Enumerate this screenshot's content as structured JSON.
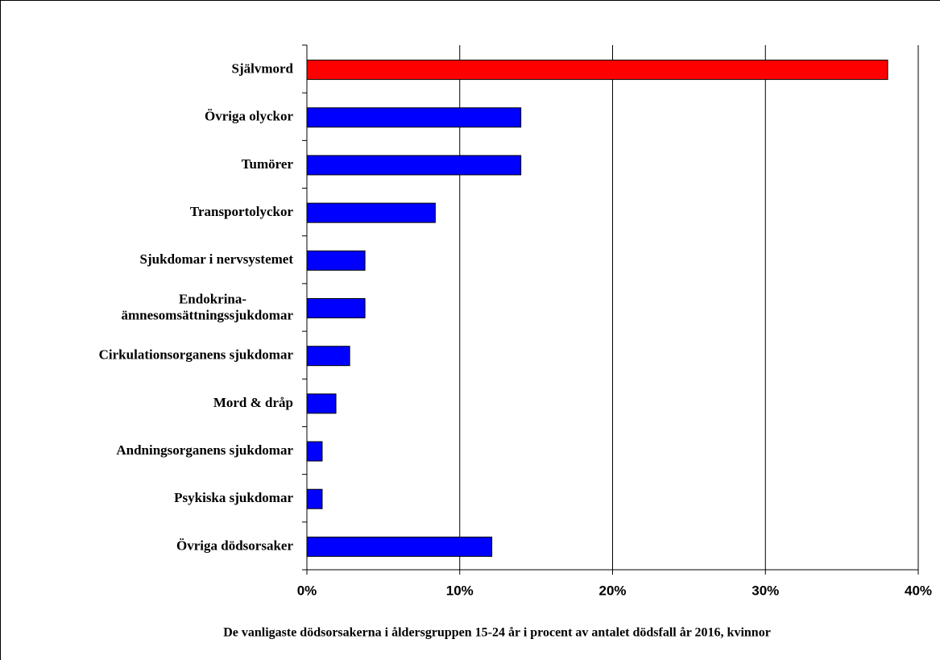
{
  "chart_data": {
    "type": "barh",
    "title": "De vanligaste dödsorsakerna i åldersgruppen 15-24 år i procent av antalet dödsfall år 2016, kvinnor",
    "categories": [
      "Självmord",
      "Övriga olyckor",
      "Tumörer",
      "Transportolyckor",
      "Sjukdomar i nervsystemet",
      "Endokrina-\nämnesomsättningssjukdomar",
      "Cirkulationsorganens sjukdomar",
      "Mord & dråp",
      "Andningsorganens sjukdomar",
      "Psykiska sjukdomar",
      "Övriga dödsorsaker"
    ],
    "values": [
      38,
      14,
      14,
      8.4,
      3.8,
      3.8,
      2.8,
      1.9,
      1,
      1,
      12.1
    ],
    "colors": [
      "#ff0000",
      "#0000ff",
      "#0000ff",
      "#0000ff",
      "#0000ff",
      "#0000ff",
      "#0000ff",
      "#0000ff",
      "#0000ff",
      "#0000ff",
      "#0000ff"
    ],
    "xlim": [
      0,
      40
    ],
    "xticks": [
      {
        "value": 0,
        "label": "0%"
      },
      {
        "value": 10,
        "label": "10%"
      },
      {
        "value": 20,
        "label": "20%"
      },
      {
        "value": 30,
        "label": "30%"
      },
      {
        "value": 40,
        "label": "40%"
      }
    ],
    "grid": true
  }
}
